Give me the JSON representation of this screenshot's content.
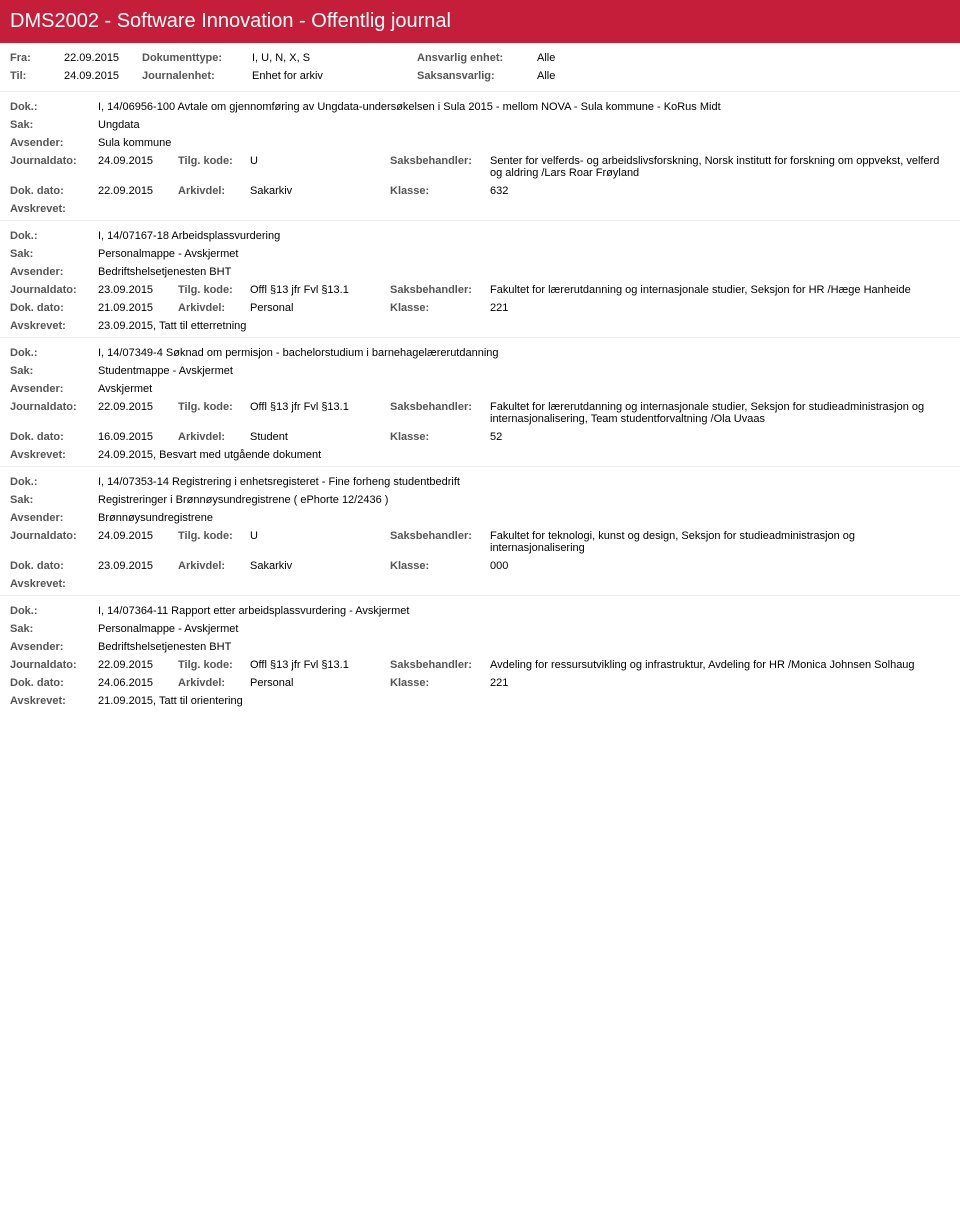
{
  "header": {
    "title": "DMS2002 - Software Innovation - Offentlig journal"
  },
  "meta": {
    "fra_label": "Fra:",
    "fra_val": "22.09.2015",
    "til_label": "Til:",
    "til_val": "24.09.2015",
    "doktype_label": "Dokumenttype:",
    "doktype_val": "I, U, N, X, S",
    "journalenhet_label": "Journalenhet:",
    "journalenhet_val": "Enhet for arkiv",
    "ansvarlig_label": "Ansvarlig enhet:",
    "ansvarlig_val": "Alle",
    "saksansvarlig_label": "Saksansvarlig:",
    "saksansvarlig_val": "Alle"
  },
  "labels": {
    "dok": "Dok.:",
    "sak": "Sak:",
    "avsender": "Avsender:",
    "journaldato": "Journaldato:",
    "tilgkode": "Tilg. kode:",
    "saksbehandler": "Saksbehandler:",
    "dokdato": "Dok. dato:",
    "arkivdel": "Arkivdel:",
    "klasse": "Klasse:",
    "avskrevet": "Avskrevet:"
  },
  "entries": [
    {
      "dok": "I, 14/06956-100 Avtale om gjennomføring av Ungdata-undersøkelsen i Sula 2015 - mellom NOVA - Sula kommune - KoRus Midt",
      "sak": "Ungdata",
      "avsender": "Sula kommune",
      "journaldato": "24.09.2015",
      "tilgkode": "U",
      "saksbehandler": "Senter for velferds- og arbeidslivsforskning,  Norsk institutt for forskning om oppvekst, velferd og aldring /Lars Roar Frøyland",
      "dokdato": "22.09.2015",
      "arkivdel": "Sakarkiv",
      "klasse": "632",
      "avskrevet": ""
    },
    {
      "dok": "I, 14/07167-18 Arbeidsplassvurdering",
      "sak": "Personalmappe - Avskjermet",
      "avsender": "Bedriftshelsetjenesten BHT",
      "journaldato": "23.09.2015",
      "tilgkode": "Offl §13 jfr Fvl §13.1",
      "saksbehandler": "Fakultet for lærerutdanning og internasjonale studier, Seksjon for HR /Hæge Hanheide",
      "dokdato": "21.09.2015",
      "arkivdel": "Personal",
      "klasse": "221",
      "avskrevet": "23.09.2015, Tatt til etterretning"
    },
    {
      "dok": "I, 14/07349-4 Søknad om permisjon - bachelorstudium i barnehagelærerutdanning",
      "sak": "Studentmappe - Avskjermet",
      "avsender": "Avskjermet",
      "journaldato": "22.09.2015",
      "tilgkode": "Offl §13 jfr Fvl §13.1",
      "saksbehandler": "Fakultet for lærerutdanning og internasjonale studier, Seksjon for studieadministrasjon og internasjonalisering, Team studentforvaltning /Ola Uvaas",
      "dokdato": "16.09.2015",
      "arkivdel": "Student",
      "klasse": "52",
      "avskrevet": "24.09.2015, Besvart med utgående dokument"
    },
    {
      "dok": "I, 14/07353-14 Registrering i enhetsregisteret - Fine forheng studentbedrift",
      "sak": "Registreringer i Brønnøysundregistrene ( ePhorte 12/2436 )",
      "avsender": "Brønnøysundregistrene",
      "journaldato": "24.09.2015",
      "tilgkode": "U",
      "saksbehandler": "Fakultet for teknologi, kunst og design, Seksjon for studieadministrasjon og internasjonalisering",
      "dokdato": "23.09.2015",
      "arkivdel": "Sakarkiv",
      "klasse": "000",
      "avskrevet": ""
    },
    {
      "dok": "I, 14/07364-11 Rapport etter arbeidsplassvurdering - Avskjermet",
      "sak": "Personalmappe - Avskjermet",
      "avsender": "Bedriftshelsetjenesten BHT",
      "journaldato": "22.09.2015",
      "tilgkode": "Offl §13 jfr Fvl §13.1",
      "saksbehandler": "Avdeling for ressursutvikling og infrastruktur, Avdeling for HR /Monica Johnsen Solhaug",
      "dokdato": "24.06.2015",
      "arkivdel": "Personal",
      "klasse": "221",
      "avskrevet": "21.09.2015, Tatt til orientering"
    }
  ],
  "colors": {
    "header_bg": "#c41e3a",
    "header_fg": "#ffffff",
    "label_fg": "#555555",
    "text_fg": "#000000",
    "border": "#eeeeee",
    "background": "#ffffff"
  }
}
